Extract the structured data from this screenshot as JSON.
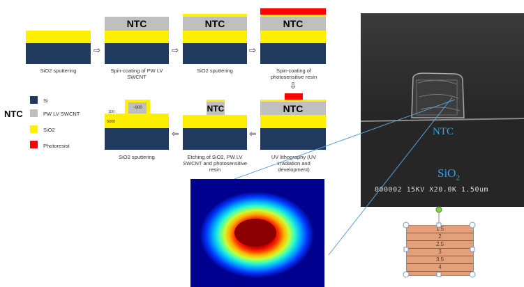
{
  "process_steps": {
    "step1_caption": "SiO2 sputtering",
    "step2_caption": "Spin-coating of PW LV SWCNT",
    "step3_caption": "SiO2 sputtering",
    "step4_caption": "Spin-coating of photosensitive resin",
    "step5_caption": "UV lithography (UV irradiation and development)",
    "step6_caption": "Etching of SiO2, PW LV SWCNT and photosensitive resin",
    "step7_caption": "SiO2 sputtering",
    "ntc_label": "NTC",
    "dim_900": "~900",
    "dim_100": "100",
    "dim_5000": "5000"
  },
  "legend": {
    "title": "NTC",
    "items": [
      {
        "label": "Si",
        "color": "#1f3a5c"
      },
      {
        "label": "PW LV SWCNT",
        "color": "#bfbfbf"
      },
      {
        "label": "SiO2",
        "color": "#ffef00"
      },
      {
        "label": "Photoresist",
        "color": "#ff0000"
      }
    ]
  },
  "sem": {
    "ntc_label": "NTC",
    "sio2_label": "SiO",
    "sio2_sub": "2",
    "info_bar": "000002  15KV  X20.0K 1.50um"
  },
  "layer_box": {
    "labels": [
      "1.5",
      "2",
      "2.5",
      "3",
      "3.5",
      "4"
    ]
  },
  "colors": {
    "si": "#1f3a5c",
    "sio2": "#ffef00",
    "ntc": "#bfbfbf",
    "photoresist": "#ff0000",
    "sem_text": "#29a8e0",
    "layer_fill": "#e4a07a"
  }
}
